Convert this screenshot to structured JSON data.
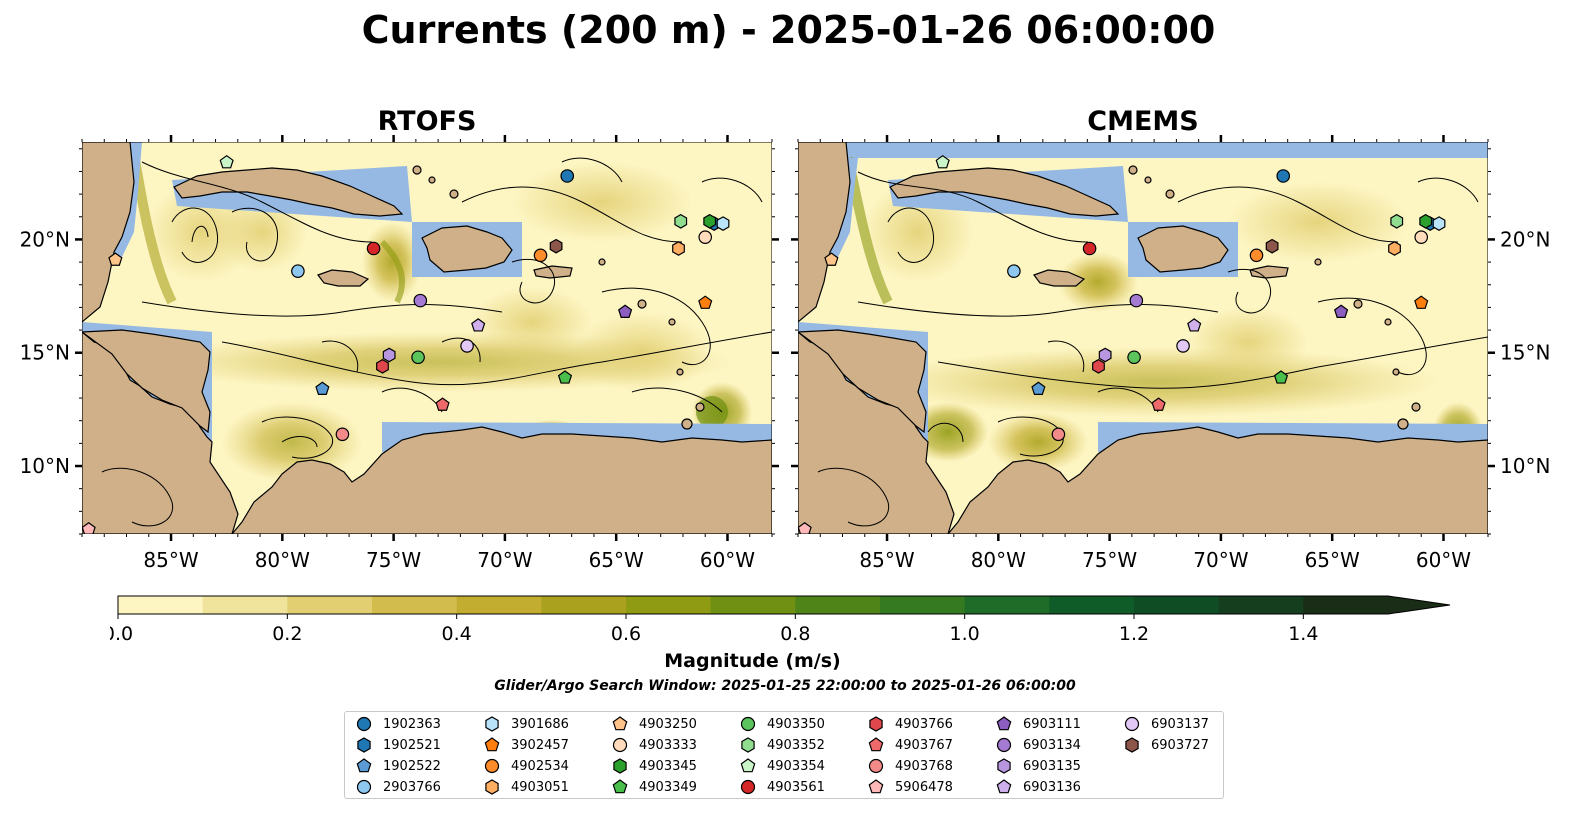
{
  "title": "Currents (200 m) - 2025-01-26 06:00:00",
  "panels": [
    {
      "id": "rtofs",
      "title": "RTOFS"
    },
    {
      "id": "cmems",
      "title": "CMEMS"
    }
  ],
  "colorbar": {
    "label": "Magnitude (m/s)",
    "ticks": [
      "0.0",
      "0.2",
      "0.4",
      "0.6",
      "0.8",
      "1.0",
      "1.2",
      "1.4"
    ],
    "levels": [
      0.0,
      0.1,
      0.2,
      0.3,
      0.4,
      0.5,
      0.6,
      0.7,
      0.8,
      0.9,
      1.0,
      1.1,
      1.2,
      1.3,
      1.4,
      1.5
    ],
    "colors": [
      "#fdf5c2",
      "#f0e39c",
      "#e2cf72",
      "#d3bc4e",
      "#c2ad30",
      "#aaa21e",
      "#8f9b12",
      "#6f9012",
      "#4e8418",
      "#357a20",
      "#1e6c27",
      "#105c28",
      "#0f4e24",
      "#153e1e",
      "#1a2e17"
    ],
    "extend": "max"
  },
  "search_window": "Glider/Argo Search Window: 2025-01-25 22:00:00 to 2025-01-26 06:00:00",
  "chart_data": {
    "type": "map",
    "variable": "current magnitude (m/s) with streamlines",
    "depth": "200 m",
    "x_ticks": [
      "85°W",
      "80°W",
      "75°W",
      "70°W",
      "65°W",
      "60°W"
    ],
    "y_ticks": [
      "10°N",
      "15°N",
      "20°N"
    ],
    "xlim": [
      -89,
      -58
    ],
    "ylim": [
      7,
      24.3
    ],
    "x_tick_values": [
      -85,
      -80,
      -75,
      -70,
      -65,
      -60
    ],
    "y_tick_values": [
      10,
      15,
      20
    ],
    "floats": [
      {
        "id": "1902363",
        "marker": "circle",
        "color": "#1f77b4",
        "lon": -67.2,
        "lat": 22.8
      },
      {
        "id": "1902521",
        "marker": "hexagon",
        "color": "#1f77b4",
        "lon": -60.6,
        "lat": 20.7
      },
      {
        "id": "1902522",
        "marker": "pentagon",
        "color": "#5a9bd5",
        "lon": -78.2,
        "lat": 13.4
      },
      {
        "id": "2903766",
        "marker": "circle",
        "color": "#8ec7ef",
        "lon": -79.3,
        "lat": 18.6
      },
      {
        "id": "3901686",
        "marker": "hexagon",
        "color": "#b9e3f9",
        "lon": -60.2,
        "lat": 20.7
      },
      {
        "id": "3902457",
        "marker": "pentagon",
        "color": "#ff7f0e",
        "lon": -61.0,
        "lat": 17.2
      },
      {
        "id": "4902534",
        "marker": "circle",
        "color": "#ff8c2a",
        "lon": -68.4,
        "lat": 19.3
      },
      {
        "id": "4903051",
        "marker": "hexagon",
        "color": "#ffae62",
        "lon": -62.2,
        "lat": 19.6
      },
      {
        "id": "4903250",
        "marker": "pentagon",
        "color": "#ffc48a",
        "lon": -87.5,
        "lat": 19.1
      },
      {
        "id": "4903333",
        "marker": "circle",
        "color": "#ffdcbc",
        "lon": -61.0,
        "lat": 20.1
      },
      {
        "id": "4903345",
        "marker": "hexagon",
        "color": "#2ca02c",
        "lon": -60.8,
        "lat": 20.8
      },
      {
        "id": "4903349",
        "marker": "pentagon",
        "color": "#4bbf4b",
        "lon": -67.3,
        "lat": 13.9
      },
      {
        "id": "4903350",
        "marker": "circle",
        "color": "#5cc45c",
        "lon": -73.9,
        "lat": 14.8
      },
      {
        "id": "4903352",
        "marker": "hexagon",
        "color": "#90dd90",
        "lon": -62.1,
        "lat": 20.8
      },
      {
        "id": "4903354",
        "marker": "pentagon",
        "color": "#c9f5c9",
        "lon": -82.5,
        "lat": 23.4
      },
      {
        "id": "4903561",
        "marker": "circle",
        "color": "#d62728",
        "lon": -75.9,
        "lat": 19.6
      },
      {
        "id": "4903766",
        "marker": "hexagon",
        "color": "#e0474c",
        "lon": -75.5,
        "lat": 14.4
      },
      {
        "id": "4903767",
        "marker": "pentagon",
        "color": "#ee6a6a",
        "lon": -72.8,
        "lat": 12.7
      },
      {
        "id": "4903768",
        "marker": "circle",
        "color": "#f28a8a",
        "lon": -77.3,
        "lat": 11.4
      },
      {
        "id": "5906478",
        "marker": "pentagon",
        "color": "#ffb9b9",
        "lon": -88.7,
        "lat": 7.2
      },
      {
        "id": "6903111",
        "marker": "pentagon",
        "color": "#8b5ebf",
        "lon": -64.6,
        "lat": 16.8
      },
      {
        "id": "6903134",
        "marker": "circle",
        "color": "#a57ad3",
        "lon": -73.8,
        "lat": 17.3
      },
      {
        "id": "6903135",
        "marker": "hexagon",
        "color": "#b996e0",
        "lon": -75.2,
        "lat": 14.9
      },
      {
        "id": "6903136",
        "marker": "pentagon",
        "color": "#cfb0ec",
        "lon": -71.2,
        "lat": 16.2
      },
      {
        "id": "6903137",
        "marker": "circle",
        "color": "#e2c8f4",
        "lon": -71.7,
        "lat": 15.3
      },
      {
        "id": "6903727",
        "marker": "hexagon",
        "color": "#8c564b",
        "lon": -67.7,
        "lat": 19.7
      }
    ]
  },
  "colors": {
    "land": "#cfb089",
    "water": "#96b9e4",
    "streamline": "#000000"
  }
}
